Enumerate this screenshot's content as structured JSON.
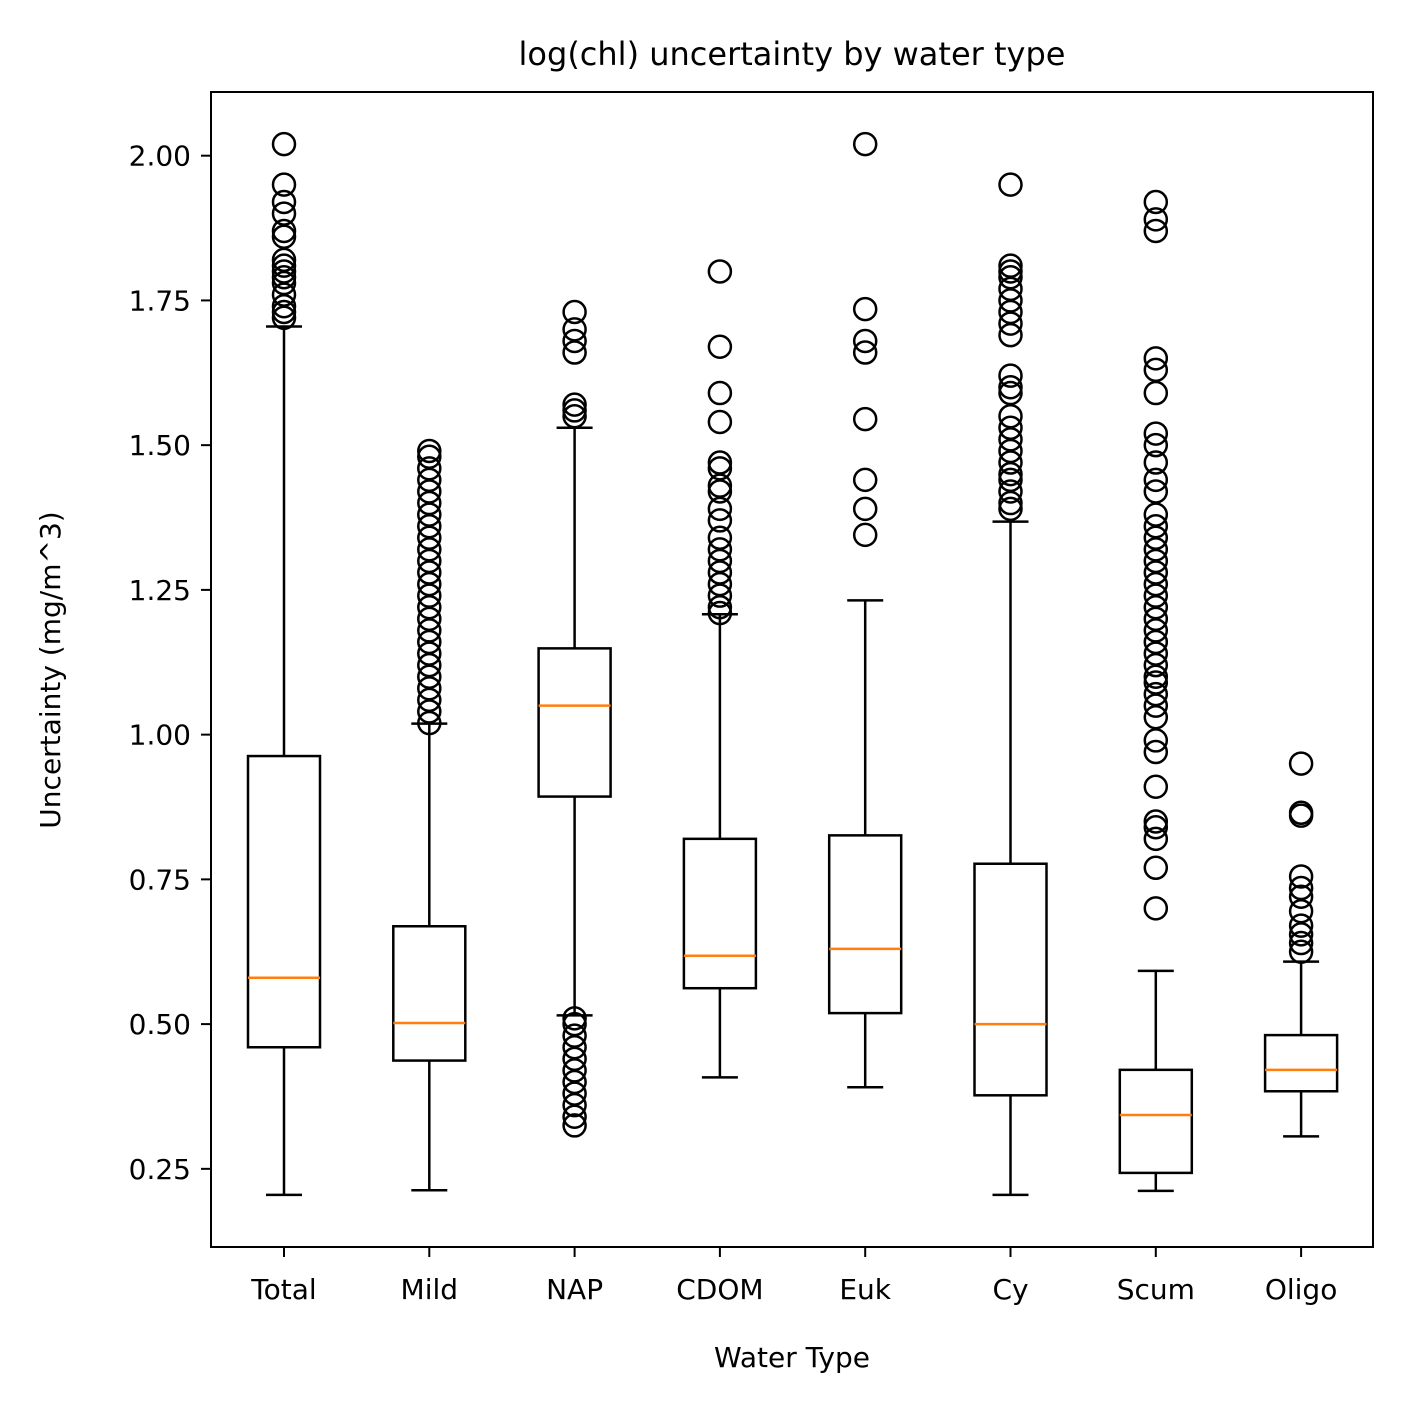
{
  "chart_data": {
    "type": "box",
    "title": "log(chl) uncertainty by water type",
    "xlabel": "Water Type",
    "ylabel": "Uncertainty (mg/m^3)",
    "ylim": [
      0.115,
      2.11
    ],
    "yticks": [
      "0.25",
      "0.50",
      "0.75",
      "1.00",
      "1.25",
      "1.50",
      "1.75",
      "2.00"
    ],
    "ytick_values": [
      0.25,
      0.5,
      0.75,
      1.0,
      1.25,
      1.5,
      1.75,
      2.0
    ],
    "grid": false,
    "colors": {
      "box": "#000000",
      "median": "#ff7f0e"
    },
    "categories": [
      "Total",
      "Mild",
      "NAP",
      "CDOM",
      "Euk",
      "Cy",
      "Scum",
      "Oligo"
    ],
    "boxes": [
      {
        "category": "Total",
        "whisker_low": 0.205,
        "q1": 0.46,
        "median": 0.58,
        "q3": 0.963,
        "whisker_high": 1.705,
        "outliers": [
          1.72,
          1.73,
          1.74,
          1.76,
          1.78,
          1.79,
          1.8,
          1.81,
          1.82,
          1.86,
          1.87,
          1.9,
          1.92,
          1.95,
          2.02
        ]
      },
      {
        "category": "Mild",
        "whisker_low": 0.213,
        "q1": 0.437,
        "median": 0.502,
        "q3": 0.669,
        "whisker_high": 1.019,
        "outliers": [
          1.02,
          1.04,
          1.06,
          1.08,
          1.1,
          1.12,
          1.14,
          1.16,
          1.18,
          1.2,
          1.22,
          1.24,
          1.26,
          1.28,
          1.3,
          1.32,
          1.34,
          1.36,
          1.38,
          1.4,
          1.42,
          1.44,
          1.46,
          1.48,
          1.49
        ]
      },
      {
        "category": "NAP",
        "whisker_low": 0.515,
        "q1": 0.893,
        "median": 1.05,
        "q3": 1.149,
        "whisker_high": 1.53,
        "outliers": [
          0.325,
          0.34,
          0.36,
          0.38,
          0.4,
          0.42,
          0.44,
          0.46,
          0.48,
          0.5,
          0.51,
          1.55,
          1.56,
          1.57,
          1.66,
          1.68,
          1.7,
          1.73
        ]
      },
      {
        "category": "CDOM",
        "whisker_low": 0.408,
        "q1": 0.562,
        "median": 0.618,
        "q3": 0.82,
        "whisker_high": 1.208,
        "outliers": [
          1.21,
          1.22,
          1.24,
          1.26,
          1.28,
          1.3,
          1.32,
          1.34,
          1.37,
          1.39,
          1.42,
          1.43,
          1.46,
          1.47,
          1.54,
          1.59,
          1.67,
          1.8
        ]
      },
      {
        "category": "Euk",
        "whisker_low": 0.391,
        "q1": 0.519,
        "median": 0.63,
        "q3": 0.826,
        "whisker_high": 1.232,
        "outliers": [
          1.345,
          1.39,
          1.44,
          1.545,
          1.66,
          1.68,
          1.735,
          2.02
        ]
      },
      {
        "category": "Cy",
        "whisker_low": 0.205,
        "q1": 0.377,
        "median": 0.5,
        "q3": 0.777,
        "whisker_high": 1.368,
        "outliers": [
          1.39,
          1.4,
          1.42,
          1.44,
          1.45,
          1.47,
          1.49,
          1.51,
          1.53,
          1.55,
          1.59,
          1.6,
          1.62,
          1.69,
          1.71,
          1.73,
          1.75,
          1.77,
          1.79,
          1.8,
          1.81,
          1.95
        ]
      },
      {
        "category": "Scum",
        "whisker_low": 0.212,
        "q1": 0.243,
        "median": 0.343,
        "q3": 0.421,
        "whisker_high": 0.592,
        "outliers": [
          0.7,
          0.77,
          0.82,
          0.84,
          0.85,
          0.91,
          0.97,
          0.99,
          1.03,
          1.05,
          1.07,
          1.09,
          1.1,
          1.12,
          1.14,
          1.16,
          1.18,
          1.2,
          1.22,
          1.24,
          1.26,
          1.28,
          1.3,
          1.32,
          1.34,
          1.36,
          1.38,
          1.42,
          1.44,
          1.47,
          1.5,
          1.52,
          1.59,
          1.63,
          1.65,
          1.87,
          1.89,
          1.92
        ]
      },
      {
        "category": "Oligo",
        "whisker_low": 0.306,
        "q1": 0.384,
        "median": 0.421,
        "q3": 0.481,
        "whisker_high": 0.608,
        "outliers": [
          0.625,
          0.64,
          0.655,
          0.67,
          0.695,
          0.72,
          0.735,
          0.755,
          0.86,
          0.865,
          0.95
        ]
      }
    ]
  }
}
